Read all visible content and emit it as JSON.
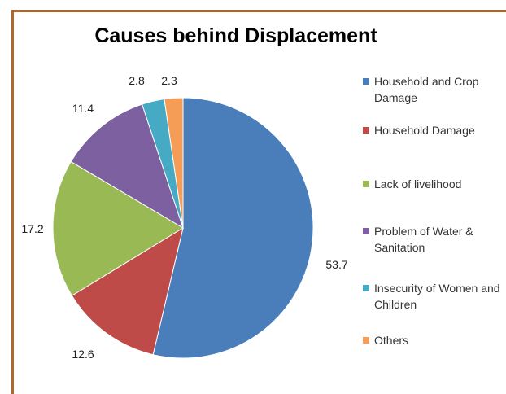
{
  "chart_data": {
    "type": "pie",
    "title": "Causes behind Displacement",
    "categories": [
      "Household and Crop Damage",
      "Household Damage",
      "Lack of livelihood",
      "Problem of Water & Sanitation",
      "Insecurity of Women and Children",
      "Others"
    ],
    "values": [
      53.7,
      12.6,
      17.2,
      11.4,
      2.8,
      2.3
    ],
    "colors": [
      "#4a7ebb",
      "#be4b48",
      "#98b954",
      "#7d60a0",
      "#46aac5",
      "#f59d56"
    ],
    "data_labels": [
      "53.7",
      "12.6",
      "17.2",
      "11.4",
      "2.8",
      "2.3"
    ],
    "legend_position": "right"
  }
}
